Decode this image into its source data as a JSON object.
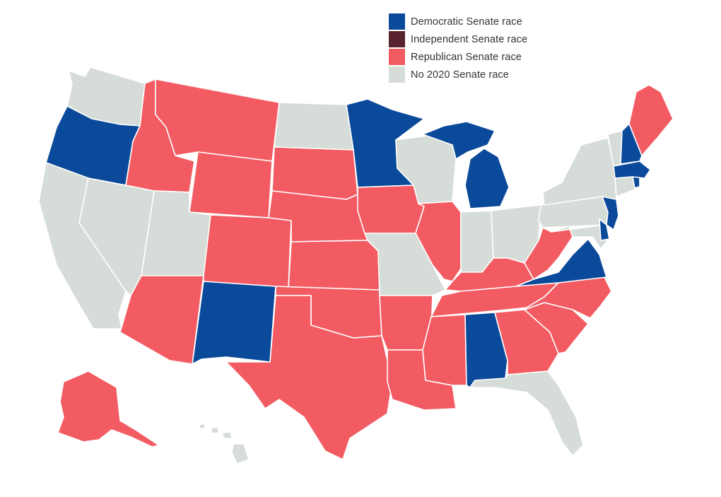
{
  "colors": {
    "democratic": "#0b4a9a",
    "independent": "#58232e",
    "republican": "#f35b62",
    "none": "#d6dcd7",
    "border": "#ffffff"
  },
  "legend": [
    {
      "key": "democratic",
      "label": "Democratic Senate race",
      "color": "#0b4a9a"
    },
    {
      "key": "independent",
      "label": "Independent Senate race",
      "color": "#58232e"
    },
    {
      "key": "republican",
      "label": "Republican Senate race",
      "color": "#f35b62"
    },
    {
      "key": "none",
      "label": "No 2020 Senate race",
      "color": "#d6dcd7"
    }
  ],
  "states": [
    {
      "code": "WA",
      "race": "none"
    },
    {
      "code": "OR",
      "race": "democratic"
    },
    {
      "code": "CA",
      "race": "none"
    },
    {
      "code": "NV",
      "race": "none"
    },
    {
      "code": "ID",
      "race": "republican"
    },
    {
      "code": "MT",
      "race": "republican"
    },
    {
      "code": "WY",
      "race": "republican"
    },
    {
      "code": "UT",
      "race": "none"
    },
    {
      "code": "AZ",
      "race": "republican"
    },
    {
      "code": "CO",
      "race": "republican"
    },
    {
      "code": "NM",
      "race": "democratic"
    },
    {
      "code": "ND",
      "race": "none"
    },
    {
      "code": "SD",
      "race": "republican"
    },
    {
      "code": "NE",
      "race": "republican"
    },
    {
      "code": "KS",
      "race": "republican"
    },
    {
      "code": "OK",
      "race": "republican"
    },
    {
      "code": "TX",
      "race": "republican"
    },
    {
      "code": "MN",
      "race": "democratic"
    },
    {
      "code": "IA",
      "race": "republican"
    },
    {
      "code": "MO",
      "race": "none"
    },
    {
      "code": "AR",
      "race": "republican"
    },
    {
      "code": "LA",
      "race": "republican"
    },
    {
      "code": "WI",
      "race": "none"
    },
    {
      "code": "IL",
      "race": "republican"
    },
    {
      "code": "MI",
      "race": "democratic"
    },
    {
      "code": "IN",
      "race": "none"
    },
    {
      "code": "OH",
      "race": "none"
    },
    {
      "code": "KY",
      "race": "republican"
    },
    {
      "code": "TN",
      "race": "republican"
    },
    {
      "code": "MS",
      "race": "republican"
    },
    {
      "code": "AL",
      "race": "democratic"
    },
    {
      "code": "GA",
      "race": "republican"
    },
    {
      "code": "FL",
      "race": "none"
    },
    {
      "code": "SC",
      "race": "republican"
    },
    {
      "code": "NC",
      "race": "republican"
    },
    {
      "code": "VA",
      "race": "democratic"
    },
    {
      "code": "WV",
      "race": "republican"
    },
    {
      "code": "MD",
      "race": "none"
    },
    {
      "code": "DE",
      "race": "democratic"
    },
    {
      "code": "PA",
      "race": "none"
    },
    {
      "code": "NJ",
      "race": "democratic"
    },
    {
      "code": "NY",
      "race": "none"
    },
    {
      "code": "CT",
      "race": "none"
    },
    {
      "code": "RI",
      "race": "democratic"
    },
    {
      "code": "MA",
      "race": "democratic"
    },
    {
      "code": "VT",
      "race": "none"
    },
    {
      "code": "NH",
      "race": "democratic"
    },
    {
      "code": "ME",
      "race": "republican"
    },
    {
      "code": "AK",
      "race": "republican"
    },
    {
      "code": "HI",
      "race": "none"
    }
  ]
}
